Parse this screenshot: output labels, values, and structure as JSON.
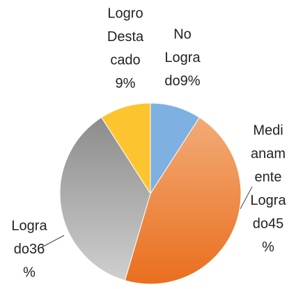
{
  "chart_data": {
    "type": "pie",
    "labels": [
      [
        "No",
        "Logra",
        "do9%"
      ],
      [
        "Medi",
        "anam",
        "ente",
        "Logra",
        "do45",
        "%"
      ],
      [
        "Logra",
        "do36",
        "%"
      ],
      [
        "Logro",
        "Desta",
        "cado",
        "9%"
      ]
    ],
    "values": [
      9,
      45,
      36,
      9
    ],
    "colors": [
      "#7eb0e2",
      "#ee8f45",
      "#bdbdbd",
      "#fcc530"
    ]
  }
}
